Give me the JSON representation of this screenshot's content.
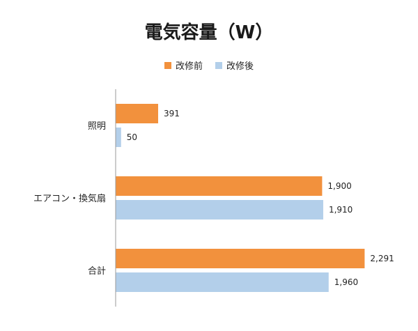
{
  "chart_data": {
    "type": "bar",
    "orientation": "horizontal",
    "title": "電気容量（W）",
    "xlabel": "",
    "ylabel": "",
    "categories": [
      "照明",
      "エアコン・換気扇",
      "合計"
    ],
    "series": [
      {
        "name": "改修前",
        "color": "#F2913D",
        "values": [
          391,
          1900,
          2291
        ],
        "labels": [
          "391",
          "1,900",
          "2,291"
        ]
      },
      {
        "name": "改修後",
        "color": "#B3CFEA",
        "values": [
          50,
          1910,
          1960
        ],
        "labels": [
          "50",
          "1,910",
          "1,960"
        ]
      }
    ],
    "xlim": [
      0,
      2500
    ],
    "grid": false,
    "legend_position": "top"
  }
}
